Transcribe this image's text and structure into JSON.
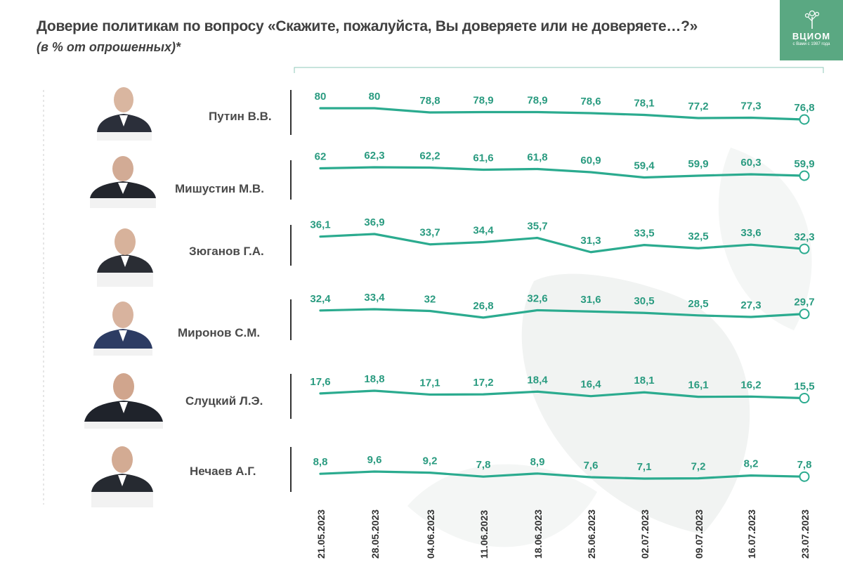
{
  "header": {
    "title": "Доверие политикам по вопросу «Скажите, пожалуйста, Вы доверяете или не доверяете…?»",
    "subtitle": "(в % от опрошенных)*"
  },
  "logo": {
    "name": "ВЦИОМ",
    "tagline": "с Вами с 1987 года",
    "color": "#5aa882"
  },
  "colors": {
    "line": "#2bab8f",
    "label": "#2a9b80",
    "text": "#404040",
    "axis": "#333333"
  },
  "chart_data": {
    "type": "line",
    "x": [
      "21.05.2023",
      "28.05.2023",
      "04.06.2023",
      "11.06.2023",
      "18.06.2023",
      "25.06.2023",
      "02.07.2023",
      "09.07.2023",
      "16.07.2023",
      "23.07.2023"
    ],
    "series": [
      {
        "name": "Путин В.В.",
        "values": [
          "80",
          "80",
          "78,8",
          "78,9",
          "78,9",
          "78,6",
          "78,1",
          "77,2",
          "77,3",
          "76,8"
        ]
      },
      {
        "name": "Мишустин М.В.",
        "values": [
          "62",
          "62,3",
          "62,2",
          "61,6",
          "61,8",
          "60,9",
          "59,4",
          "59,9",
          "60,3",
          "59,9"
        ]
      },
      {
        "name": "Зюганов Г.А.",
        "values": [
          "36,1",
          "36,9",
          "33,7",
          "34,4",
          "35,7",
          "31,3",
          "33,5",
          "32,5",
          "33,6",
          "32,3"
        ]
      },
      {
        "name": "Миронов С.М.",
        "values": [
          "32,4",
          "33,4",
          "32",
          "26,8",
          "32,6",
          "31,6",
          "30,5",
          "28,5",
          "27,3",
          "29,7"
        ]
      },
      {
        "name": "Слуцкий Л.Э.",
        "values": [
          "17,6",
          "18,8",
          "17,1",
          "17,2",
          "18,4",
          "16,4",
          "18,1",
          "16,1",
          "16,2",
          "15,5"
        ]
      },
      {
        "name": "Нечаев А.Г.",
        "values": [
          "8,8",
          "9,6",
          "9,2",
          "7,8",
          "8,9",
          "7,6",
          "7,1",
          "7,2",
          "8,2",
          "7,8"
        ]
      }
    ]
  }
}
